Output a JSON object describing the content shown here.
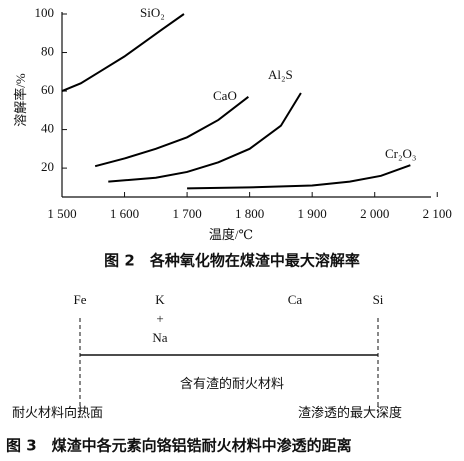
{
  "chart_data": {
    "type": "line",
    "title": "图 2　各种氧化物在煤渣中最大溶解率",
    "xlabel": "温度/℃",
    "ylabel": "溶解率/%",
    "xlim": [
      1500,
      2090
    ],
    "ylim": [
      5,
      100
    ],
    "xticks": [
      {
        "value": 1500,
        "label": "1 500"
      },
      {
        "value": 1600,
        "label": "1 600"
      },
      {
        "value": 1700,
        "label": "1 700"
      },
      {
        "value": 1800,
        "label": "1 800"
      },
      {
        "value": 1900,
        "label": "1 900"
      },
      {
        "value": 2000,
        "label": "2 000"
      },
      {
        "value": 2100,
        "label": "2 100"
      }
    ],
    "yticks": [
      20,
      40,
      60,
      80,
      100
    ],
    "grid": false,
    "series": [
      {
        "name": "SiO₂",
        "color": "#000000",
        "x": [
          1500,
          1530,
          1560,
          1600,
          1630,
          1660,
          1695
        ],
        "values": [
          60,
          64,
          70,
          78,
          85,
          92,
          100
        ]
      },
      {
        "name": "CaO",
        "color": "#000000",
        "x": [
          1553,
          1600,
          1650,
          1700,
          1750,
          1798
        ],
        "values": [
          21,
          25,
          30,
          36,
          45,
          57
        ]
      },
      {
        "name": "Al₂S",
        "color": "#000000",
        "x": [
          1574,
          1650,
          1700,
          1750,
          1800,
          1850,
          1882
        ],
        "values": [
          13,
          15,
          18,
          23,
          30,
          42,
          59
        ]
      },
      {
        "name": "Cr₂O₃",
        "color": "#000000",
        "x": [
          1700,
          1800,
          1900,
          1960,
          2010,
          2057
        ],
        "values": [
          9.5,
          10,
          11,
          13,
          16,
          21.5
        ]
      }
    ]
  },
  "figure3": {
    "elements": [
      [
        "Fe"
      ],
      [
        "K",
        "+",
        "Na"
      ],
      [
        "Ca"
      ],
      [
        "Si"
      ]
    ],
    "region_label": "含有渣的耐火材料",
    "left_label": "耐火材料向热面",
    "right_label": "渣渗透的最大深度",
    "caption": "图 3　煤渣中各元素向铬铝锆耐火材料中渗透的距离"
  }
}
